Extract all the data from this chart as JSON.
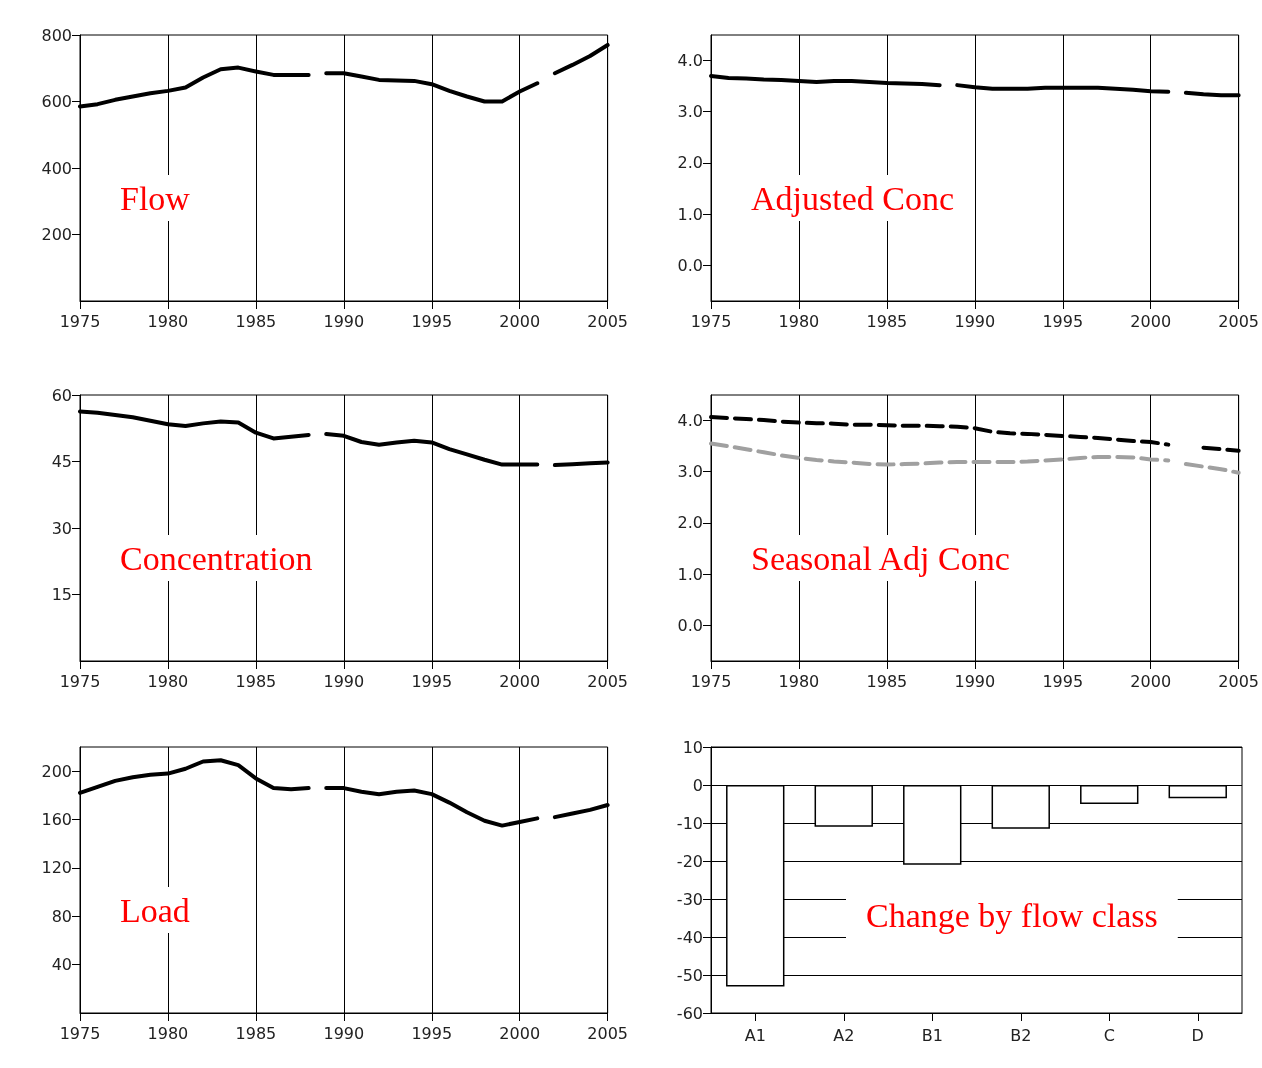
{
  "chart_data": [
    {
      "type": "line",
      "annotations": [
        "Flow"
      ],
      "xlim": [
        1975,
        2005
      ],
      "xticks": [
        1975,
        1980,
        1985,
        1990,
        1995,
        2000,
        2005
      ],
      "ylim": [
        0,
        800
      ],
      "yticks": [
        200,
        400,
        600,
        800
      ],
      "grid": "x",
      "line_style": "solid",
      "marker": "none",
      "x": [
        1975,
        1976,
        1977,
        1978,
        1979,
        1980,
        1981,
        1982,
        1983,
        1984,
        1985,
        1986,
        1987,
        1988,
        1988.3,
        1989,
        1990,
        1991,
        1992,
        1993,
        1994,
        1995,
        1996,
        1997,
        1998,
        1999,
        2000,
        2001,
        2001.6,
        2002,
        2003,
        2004,
        2005
      ],
      "series": [
        {
          "color": "#000000",
          "values": [
            585,
            592,
            605,
            615,
            625,
            632,
            642,
            672,
            697,
            702,
            690,
            680,
            680,
            680,
            null,
            685,
            685,
            675,
            665,
            663,
            662,
            652,
            632,
            615,
            600,
            600,
            630,
            655,
            null,
            685,
            710,
            737,
            770
          ]
        }
      ]
    },
    {
      "type": "line",
      "annotations": [
        "Adjusted Conc"
      ],
      "xlim": [
        1975,
        2005
      ],
      "xticks": [
        1975,
        1980,
        1985,
        1990,
        1995,
        2000,
        2005
      ],
      "ylim": [
        -0.7,
        4.5
      ],
      "yticks": [
        {
          "value": 0,
          "label": "0.0"
        },
        {
          "value": 1,
          "label": "1.0"
        },
        {
          "value": 2,
          "label": "2.0"
        },
        {
          "value": 3,
          "label": "3.0"
        },
        {
          "value": 4,
          "label": "4.0"
        }
      ],
      "grid": "x",
      "line_style": "solid",
      "marker": "none",
      "x": [
        1975,
        1976,
        1977,
        1978,
        1979,
        1980,
        1981,
        1982,
        1983,
        1984,
        1985,
        1986,
        1987,
        1988,
        1988.3,
        1989,
        1990,
        1991,
        1992,
        1993,
        1994,
        1995,
        1996,
        1997,
        1998,
        1999,
        2000,
        2001,
        2001.6,
        2002,
        2003,
        2004,
        2005
      ],
      "series": [
        {
          "color": "#000000",
          "values": [
            3.7,
            3.66,
            3.65,
            3.63,
            3.62,
            3.6,
            3.58,
            3.6,
            3.6,
            3.58,
            3.56,
            3.55,
            3.54,
            3.52,
            null,
            3.52,
            3.48,
            3.45,
            3.45,
            3.45,
            3.47,
            3.47,
            3.47,
            3.47,
            3.45,
            3.43,
            3.4,
            3.39,
            null,
            3.37,
            3.34,
            3.32,
            3.32
          ]
        }
      ]
    },
    {
      "type": "line",
      "annotations": [
        "Concentration"
      ],
      "xlim": [
        1975,
        2005
      ],
      "xticks": [
        1975,
        1980,
        1985,
        1990,
        1995,
        2000,
        2005
      ],
      "ylim": [
        0,
        60
      ],
      "yticks": [
        15,
        30,
        45,
        60
      ],
      "grid": "x",
      "line_style": "solid",
      "marker": "none",
      "x": [
        1975,
        1976,
        1977,
        1978,
        1979,
        1980,
        1981,
        1982,
        1983,
        1984,
        1985,
        1986,
        1987,
        1988,
        1988.3,
        1989,
        1990,
        1991,
        1992,
        1993,
        1994,
        1995,
        1996,
        1997,
        1998,
        1999,
        2000,
        2001,
        2001.6,
        2002,
        2003,
        2004,
        2005
      ],
      "series": [
        {
          "color": "#000000",
          "values": [
            56.3,
            56,
            55.5,
            55,
            54.2,
            53.4,
            53,
            53.6,
            54,
            53.8,
            51.5,
            50.2,
            50.6,
            51,
            null,
            51.2,
            50.8,
            49.4,
            48.8,
            49.3,
            49.7,
            49.3,
            47.8,
            46.6,
            45.4,
            44.3,
            44.3,
            44.3,
            null,
            44.2,
            44.4,
            44.6,
            44.8
          ]
        }
      ]
    },
    {
      "type": "line",
      "annotations": [
        "Seasonal Adj Conc"
      ],
      "xlim": [
        1975,
        2005
      ],
      "xticks": [
        1975,
        1980,
        1985,
        1990,
        1995,
        2000,
        2005
      ],
      "ylim": [
        -0.7,
        4.5
      ],
      "yticks": [
        {
          "value": 0,
          "label": "0.0"
        },
        {
          "value": 1,
          "label": "1.0"
        },
        {
          "value": 2,
          "label": "2.0"
        },
        {
          "value": 3,
          "label": "3.0"
        },
        {
          "value": 4,
          "label": "4.0"
        }
      ],
      "grid": "x",
      "line_style": "dashed",
      "marker": "none",
      "x": [
        1975,
        1976,
        1977,
        1978,
        1979,
        1980,
        1981,
        1982,
        1983,
        1984,
        1985,
        1986,
        1987,
        1988,
        1989,
        1990,
        1991,
        1992,
        1993,
        1994,
        1995,
        1996,
        1997,
        1998,
        1999,
        2000,
        2001,
        2001.6,
        2002,
        2003,
        2004,
        2005
      ],
      "series": [
        {
          "color": "#000000",
          "values": [
            4.07,
            4.05,
            4.03,
            4.01,
            3.98,
            3.96,
            3.95,
            3.94,
            3.92,
            3.92,
            3.91,
            3.9,
            3.9,
            3.89,
            3.88,
            3.85,
            3.78,
            3.75,
            3.74,
            3.72,
            3.7,
            3.68,
            3.66,
            3.63,
            3.6,
            3.58,
            3.53,
            null,
            null,
            3.47,
            3.44,
            3.41
          ]
        },
        {
          "color": "#a0a0a0",
          "values": [
            3.55,
            3.5,
            3.44,
            3.38,
            3.32,
            3.27,
            3.23,
            3.2,
            3.18,
            3.15,
            3.14,
            3.15,
            3.16,
            3.18,
            3.19,
            3.19,
            3.19,
            3.19,
            3.2,
            3.22,
            3.24,
            3.27,
            3.29,
            3.29,
            3.28,
            3.24,
            3.22,
            null,
            3.15,
            3.1,
            3.05,
            2.98
          ]
        }
      ]
    },
    {
      "type": "line",
      "annotations": [
        "Load"
      ],
      "xlim": [
        1975,
        2005
      ],
      "xticks": [
        1975,
        1980,
        1985,
        1990,
        1995,
        2000,
        2005
      ],
      "ylim": [
        0,
        220
      ],
      "yticks": [
        40,
        80,
        120,
        160,
        200
      ],
      "grid": "x",
      "line_style": "solid",
      "marker": "none",
      "x": [
        1975,
        1976,
        1977,
        1978,
        1979,
        1980,
        1981,
        1982,
        1983,
        1984,
        1985,
        1986,
        1987,
        1988,
        1988.3,
        1989,
        1990,
        1991,
        1992,
        1993,
        1994,
        1995,
        1996,
        1997,
        1998,
        1999,
        2000,
        2001,
        2001.6,
        2002,
        2003,
        2004,
        2005
      ],
      "series": [
        {
          "color": "#000000",
          "values": [
            182,
            187,
            192,
            195,
            197,
            198,
            202,
            208,
            209,
            205,
            194,
            186,
            185,
            186,
            null,
            186,
            186,
            183,
            181,
            183,
            184,
            181,
            174,
            166,
            159,
            155,
            158,
            161,
            null,
            162,
            165,
            168,
            172
          ]
        }
      ]
    },
    {
      "type": "bar",
      "annotations": [
        "Change by flow class"
      ],
      "categories": [
        "A1",
        "A2",
        "B1",
        "B2",
        "C",
        "D"
      ],
      "values": [
        -53,
        -11,
        -21,
        -11.5,
        -5,
        -3.5
      ],
      "color": "#ffffff",
      "ylim": [
        -60,
        10
      ],
      "yticks": [
        -60,
        -50,
        -40,
        -30,
        -20,
        -10,
        0,
        10
      ],
      "grid": "y"
    }
  ]
}
